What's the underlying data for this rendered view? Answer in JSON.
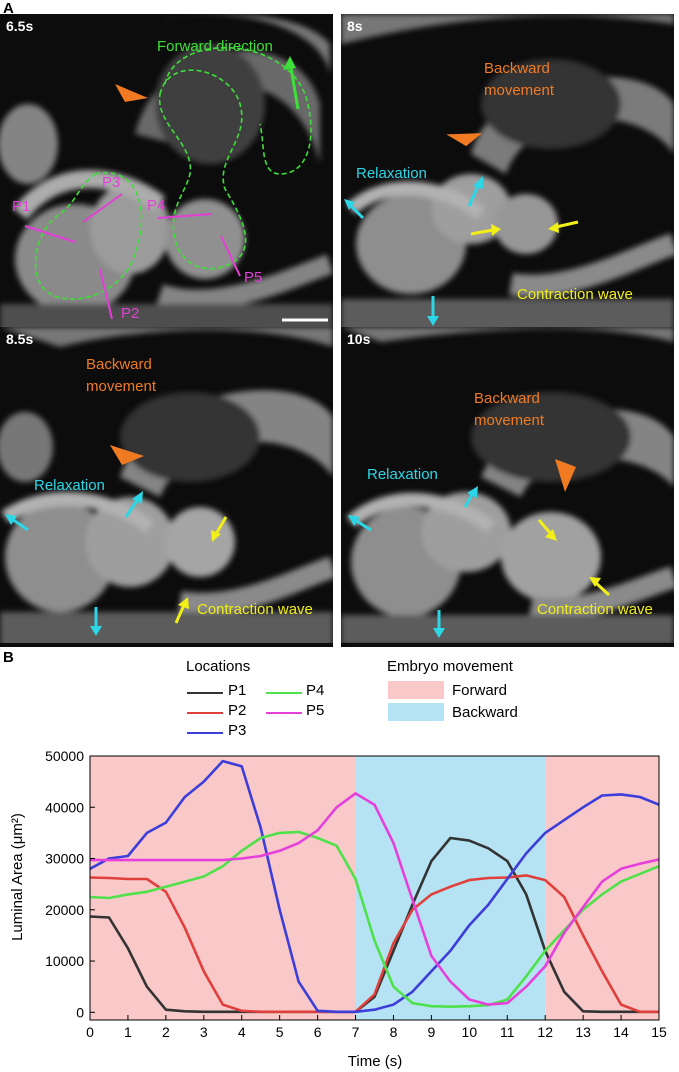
{
  "panel_a_label": "A",
  "panel_b_label": "B",
  "images": [
    {
      "time": "6.5s",
      "labels": {
        "forward": "Forward direction",
        "p1": "P1",
        "p2": "P2",
        "p3": "P3",
        "p4": "P4",
        "p5": "P5"
      }
    },
    {
      "time": "8s",
      "labels": {
        "backward": "Backward\nmovement",
        "relaxation": "Relaxation",
        "contraction": "Contraction wave"
      }
    },
    {
      "time": "8.5s",
      "labels": {
        "backward": "Backward\nmovement",
        "relaxation": "Relaxation",
        "contraction": "Contraction wave"
      }
    },
    {
      "time": "10s",
      "labels": {
        "backward": "Backward\nmovement",
        "relaxation": "Relaxation",
        "contraction": "Contraction wave"
      }
    }
  ],
  "colors": {
    "orange": "#f07a22",
    "cyan": "#2cd6e6",
    "yellow": "#f1ee18",
    "green": "#3edf38",
    "magenta": "#e33fd6",
    "forward_bg": "#f9c9c9",
    "backward_bg": "#b6e3f3"
  },
  "legend": {
    "locations_title": "Locations",
    "movement_title": "Embryo movement",
    "forward_label": "Forward",
    "backward_label": "Backward"
  },
  "chart_data": {
    "type": "line",
    "xlabel": "Time (s)",
    "ylabel": "Luminal Area (μm²)",
    "xlim": [
      0,
      15
    ],
    "ylim": [
      -1500,
      50000
    ],
    "xticks": [
      0,
      1,
      2,
      3,
      4,
      5,
      6,
      7,
      8,
      9,
      10,
      11,
      12,
      13,
      14,
      15
    ],
    "yticks": [
      0,
      10000,
      20000,
      30000,
      40000,
      50000
    ],
    "grid": false,
    "shaded_regions": [
      {
        "label": "Forward",
        "x0": 0,
        "x1": 7,
        "color": "#f9c9c9"
      },
      {
        "label": "Backward",
        "x0": 7,
        "x1": 12,
        "color": "#b6e3f3"
      },
      {
        "label": "Forward",
        "x0": 12,
        "x1": 15,
        "color": "#f9c9c9"
      }
    ],
    "x": [
      0,
      0.5,
      1,
      1.5,
      2,
      2.5,
      3,
      3.5,
      4,
      4.5,
      5,
      5.5,
      6,
      6.5,
      7,
      7.5,
      8,
      8.5,
      9,
      9.5,
      10,
      10.5,
      11,
      11.5,
      12,
      12.5,
      13,
      13.5,
      14,
      14.5,
      15
    ],
    "series": [
      {
        "name": "P1",
        "color": "#333333",
        "values": [
          18700,
          18500,
          12500,
          5000,
          500,
          200,
          100,
          100,
          100,
          100,
          100,
          100,
          100,
          100,
          100,
          3000,
          12000,
          21000,
          29500,
          34000,
          33500,
          32000,
          29500,
          23000,
          12000,
          4000,
          200,
          100,
          100,
          100,
          100
        ]
      },
      {
        "name": "P2",
        "color": "#e0403b",
        "values": [
          26300,
          26200,
          26000,
          26000,
          23500,
          16500,
          8000,
          1500,
          300,
          100,
          100,
          100,
          100,
          100,
          100,
          3500,
          13500,
          20000,
          23000,
          24500,
          25800,
          26200,
          26300,
          26700,
          25800,
          22500,
          15000,
          8000,
          1500,
          100,
          100
        ]
      },
      {
        "name": "P3",
        "color": "#3d3dd9",
        "values": [
          28000,
          30000,
          30500,
          35000,
          37000,
          42000,
          45000,
          49000,
          48000,
          36000,
          20000,
          6000,
          300,
          100,
          100,
          500,
          1500,
          4000,
          8000,
          12000,
          17000,
          21000,
          26000,
          31000,
          35000,
          37500,
          40000,
          42300,
          42500,
          42000,
          40500
        ]
      },
      {
        "name": "P4",
        "color": "#4fe14a",
        "values": [
          22500,
          22300,
          23000,
          23500,
          24500,
          25500,
          26500,
          28500,
          31500,
          34000,
          35000,
          35200,
          34000,
          32500,
          26000,
          14000,
          5000,
          1800,
          1200,
          1100,
          1200,
          1400,
          2500,
          7000,
          12000,
          16000,
          20000,
          23000,
          25500,
          27000,
          28500
        ]
      },
      {
        "name": "P5",
        "color": "#e640dc",
        "values": [
          29700,
          29700,
          29700,
          29700,
          29700,
          29700,
          29700,
          29700,
          30000,
          30500,
          31500,
          33000,
          35500,
          40000,
          42700,
          40500,
          33000,
          22000,
          11000,
          6000,
          2500,
          1500,
          1800,
          5000,
          9000,
          15500,
          20500,
          25500,
          28000,
          29000,
          29800
        ]
      }
    ]
  }
}
